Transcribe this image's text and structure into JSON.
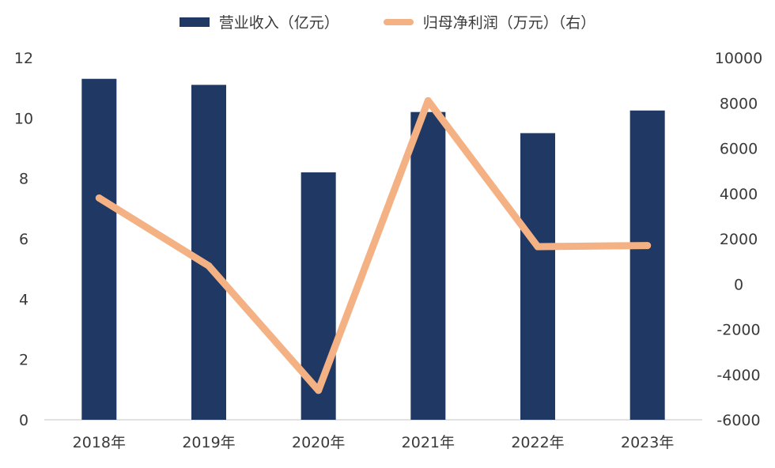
{
  "chart_data": {
    "type": "bar",
    "categories": [
      "2018年",
      "2019年",
      "2020年",
      "2021年",
      "2022年",
      "2023年"
    ],
    "series": [
      {
        "name": "营业收入（亿元）",
        "type": "bar",
        "axis": "left",
        "color": "#1f3864",
        "values": [
          11.3,
          11.1,
          8.2,
          10.2,
          9.5,
          10.25
        ]
      },
      {
        "name": "归母净利润（万元）（右）",
        "type": "line",
        "axis": "right",
        "color": "#f4b183",
        "values": [
          3800,
          800,
          -4700,
          8100,
          1650,
          1700
        ]
      }
    ],
    "y_left": {
      "min": 0,
      "max": 12,
      "ticks": [
        "0",
        "2",
        "4",
        "6",
        "8",
        "10",
        "12"
      ]
    },
    "y_right": {
      "min": -6000,
      "max": 10000,
      "ticks": [
        "-6000",
        "-4000",
        "-2000",
        "0",
        "2000",
        "4000",
        "6000",
        "8000",
        "10000"
      ]
    },
    "grid": false,
    "legend_position": "top-center"
  }
}
